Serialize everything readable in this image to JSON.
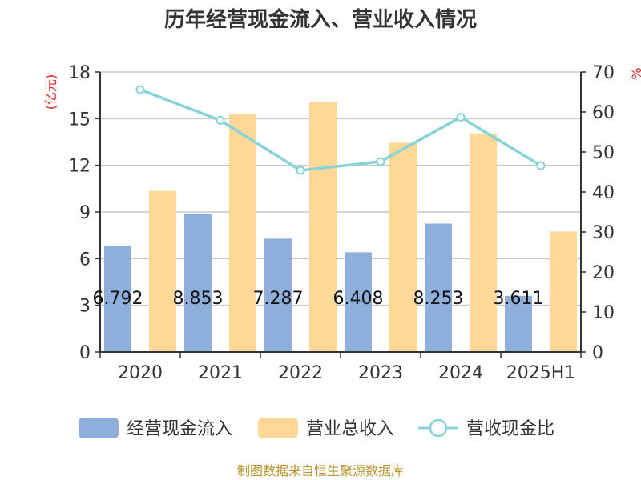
{
  "chart_data": {
    "type": "bar",
    "title": "历年经营现金流入、营业收入情况",
    "y_left_unit": "(亿元)",
    "y_right_unit": "%",
    "categories": [
      "2020",
      "2021",
      "2022",
      "2023",
      "2024",
      "2025H1"
    ],
    "y_left_ticks": [
      "0",
      "3",
      "6",
      "9",
      "12",
      "15",
      "18"
    ],
    "y_right_ticks": [
      "0",
      "10",
      "20",
      "30",
      "40",
      "50",
      "60",
      "70"
    ],
    "ylim_left": [
      0,
      18
    ],
    "ylim_right": [
      0,
      70
    ],
    "grid": true,
    "legend_position": "bottom",
    "series": [
      {
        "name": "经营现金流入",
        "type": "bar",
        "axis": "left",
        "color": "#8eaedc",
        "values": [
          6.792,
          8.853,
          7.287,
          6.408,
          8.253,
          3.611
        ],
        "labels": [
          "6.792",
          "8.853",
          "7.287",
          "6.408",
          "8.253",
          "3.611"
        ]
      },
      {
        "name": "营业总收入",
        "type": "bar",
        "axis": "left",
        "color": "#fed897",
        "values": [
          10.35,
          15.3,
          16.05,
          13.45,
          14.05,
          7.75
        ]
      },
      {
        "name": "营收现金比",
        "type": "line",
        "axis": "right",
        "color": "#88d3d8",
        "values": [
          65.6,
          57.9,
          45.4,
          47.6,
          58.7,
          46.6
        ]
      }
    ]
  },
  "source": "制图数据来自恒生聚源数据库"
}
